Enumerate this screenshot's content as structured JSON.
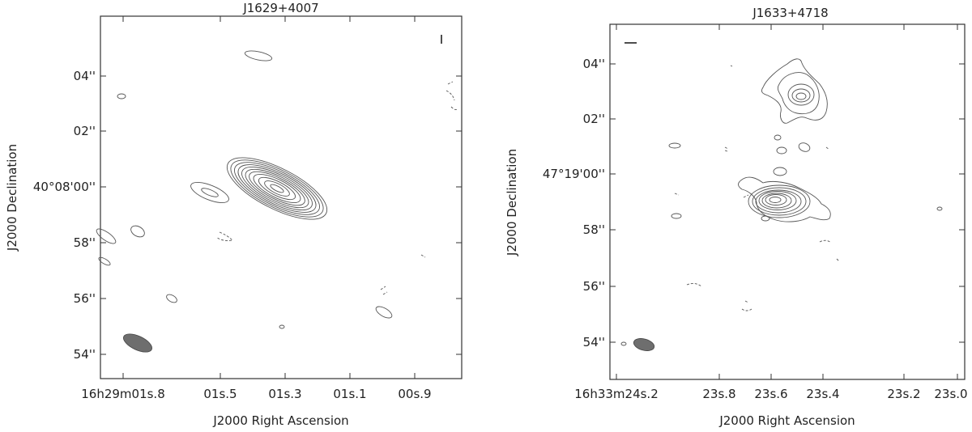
{
  "panels": [
    {
      "title": "J1629+4007",
      "xlabel": "J2000 Right Ascension",
      "ylabel": "J2000 Declination",
      "y_ticks": [
        "04''",
        "02''",
        "40°08'00''",
        "58''",
        "56''",
        "54''"
      ],
      "x_ticks": [
        "16h29m01s.8",
        "01s.5",
        "01s.3",
        "01s.1",
        "00s.9"
      ]
    },
    {
      "title": "J1633+4718",
      "xlabel": "J2000 Right Ascension",
      "ylabel": "J2000 Declination",
      "y_ticks": [
        "04''",
        "02''",
        "47°19'00''",
        "58''",
        "56''",
        "54''"
      ],
      "x_ticks": [
        "16h33m24s.2",
        "23s.8",
        "23s.6",
        "23s.4",
        "23s.2",
        "23s.0"
      ]
    }
  ],
  "contour_color": "#555555",
  "beam_color": "#6e6e6e"
}
